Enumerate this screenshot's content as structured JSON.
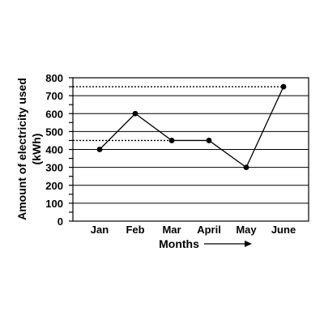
{
  "chart_data": {
    "type": "line",
    "categories": [
      "Jan",
      "Feb",
      "Mar",
      "April",
      "May",
      "June"
    ],
    "values": [
      400,
      600,
      450,
      450,
      300,
      750
    ],
    "xlabel": "Months",
    "ylabel_line1": "Amount of electricity used",
    "ylabel_line2": "(kWh)",
    "ylim": [
      0,
      800
    ],
    "yticks": [
      0,
      100,
      200,
      300,
      400,
      500,
      600,
      700,
      800
    ],
    "minor_tick_step": 50,
    "grid": "horizontal",
    "reference_lines": [
      450,
      750
    ],
    "colors": {
      "line": "#000000",
      "grid": "#000000"
    }
  }
}
